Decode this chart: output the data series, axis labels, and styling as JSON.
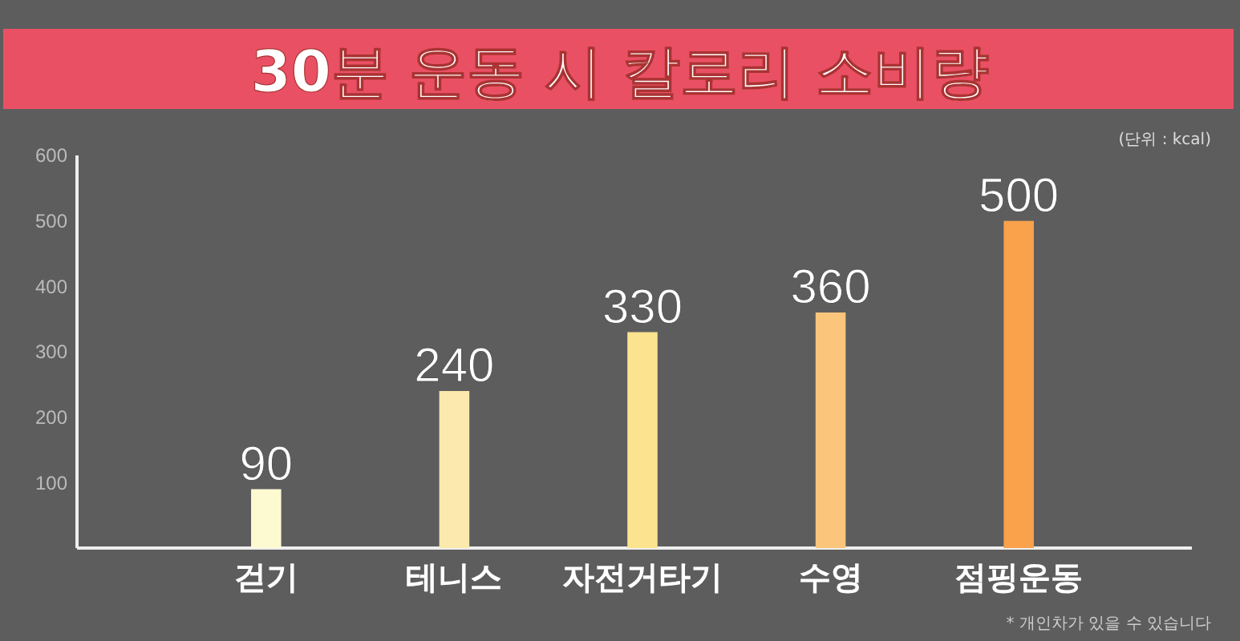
{
  "chart_data": {
    "type": "bar",
    "title": "30분 운동 시 칼로리 소비량",
    "categories": [
      "걷기",
      "테니스",
      "자전거타기",
      "수영",
      "점핑운동"
    ],
    "values": [
      90,
      240,
      330,
      360,
      500
    ],
    "colors": [
      "#fdfad2",
      "#fbe9ad",
      "#fce38f",
      "#fcc57c",
      "#f9a24b"
    ],
    "ylim": [
      0,
      600
    ],
    "yticks": [
      100,
      200,
      300,
      400,
      500,
      600
    ],
    "grid": false,
    "data_labels": true,
    "annotations": [
      "(단위 : kcal)",
      "* 개인차가 있을 수 있습니다"
    ]
  }
}
